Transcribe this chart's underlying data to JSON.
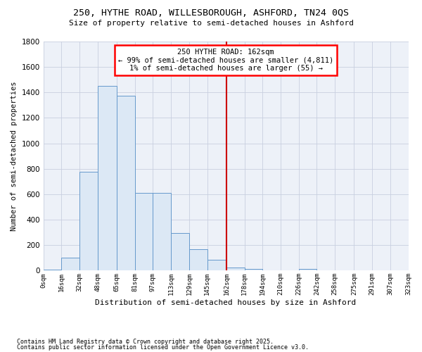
{
  "title1": "250, HYTHE ROAD, WILLESBOROUGH, ASHFORD, TN24 0QS",
  "title2": "Size of property relative to semi-detached houses in Ashford",
  "xlabel": "Distribution of semi-detached houses by size in Ashford",
  "ylabel": "Number of semi-detached properties",
  "bar_values": [
    10,
    100,
    775,
    1450,
    1375,
    610,
    610,
    295,
    170,
    85,
    25,
    15,
    0,
    0,
    15,
    0
  ],
  "bin_edges": [
    0,
    16,
    32,
    48,
    65,
    81,
    97,
    113,
    129,
    145,
    162,
    178,
    194,
    210,
    226,
    242
  ],
  "bar_color": "#dce8f5",
  "bar_edge_color": "#6699cc",
  "vline_x": 162,
  "vline_color": "#cc0000",
  "ylim": [
    0,
    1800
  ],
  "annotation_text": "250 HYTHE ROAD: 162sqm\n← 99% of semi-detached houses are smaller (4,811)\n1% of semi-detached houses are larger (55) →",
  "bg_color": "#edf1f8",
  "grid_color": "#c8cfe0",
  "footnote1": "Contains HM Land Registry data © Crown copyright and database right 2025.",
  "footnote2": "Contains public sector information licensed under the Open Government Licence v3.0.",
  "tick_labels": [
    "0sqm",
    "16sqm",
    "32sqm",
    "48sqm",
    "65sqm",
    "81sqm",
    "97sqm",
    "113sqm",
    "129sqm",
    "145sqm",
    "162sqm",
    "178sqm",
    "194sqm",
    "210sqm",
    "226sqm",
    "242sqm",
    "258sqm",
    "275sqm",
    "291sqm",
    "307sqm",
    "323sqm"
  ],
  "all_bin_edges": [
    0,
    16,
    32,
    48,
    65,
    81,
    97,
    113,
    129,
    145,
    162,
    178,
    194,
    210,
    226,
    242,
    258,
    275,
    291,
    307,
    323
  ],
  "all_bar_values": [
    10,
    100,
    775,
    1450,
    1375,
    610,
    610,
    295,
    170,
    85,
    25,
    15,
    0,
    0,
    15,
    0,
    0,
    0,
    0,
    0
  ]
}
